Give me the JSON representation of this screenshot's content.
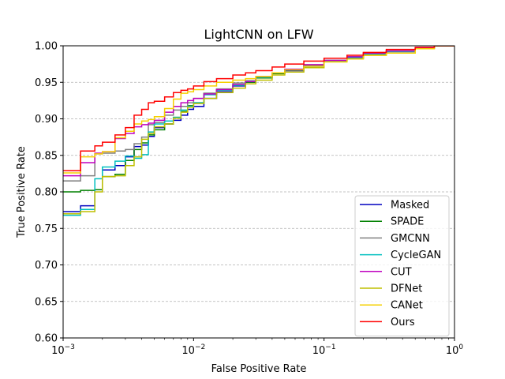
{
  "chart_data": {
    "type": "line",
    "title": "LightCNN on LFW",
    "xlabel": "False Positive Rate",
    "ylabel": "True Positive Rate",
    "xscale": "log",
    "xlim": [
      0.001,
      1
    ],
    "ylim": [
      0.6,
      1.0
    ],
    "x_ticks": [
      0.001,
      0.01,
      0.1,
      1
    ],
    "x_tick_labels": [
      {
        "base": "10",
        "exp": "−3"
      },
      {
        "base": "10",
        "exp": "−2"
      },
      {
        "base": "10",
        "exp": "−1"
      },
      {
        "base": "10",
        "exp": "0"
      }
    ],
    "y_ticks": [
      0.6,
      0.65,
      0.7,
      0.75,
      0.8,
      0.85,
      0.9,
      0.95,
      1.0
    ],
    "y_tick_labels": [
      "0.60",
      "0.65",
      "0.70",
      "0.75",
      "0.80",
      "0.85",
      "0.90",
      "0.95",
      "1.00"
    ],
    "grid": "y-dashed",
    "legend": "bottom-right",
    "series": [
      {
        "name": "Masked",
        "color": "#0000bf",
        "x": [
          0.001,
          0.00136,
          0.00175,
          0.002,
          0.0025,
          0.003,
          0.0035,
          0.004,
          0.0045,
          0.005,
          0.006,
          0.007,
          0.008,
          0.009,
          0.01,
          0.012,
          0.015,
          0.02,
          0.025,
          0.03,
          0.04,
          0.05,
          0.07,
          0.1,
          0.15,
          0.2,
          0.3,
          0.5,
          0.7
        ],
        "y": [
          0.773,
          0.781,
          0.803,
          0.83,
          0.836,
          0.848,
          0.862,
          0.864,
          0.876,
          0.888,
          0.893,
          0.898,
          0.905,
          0.913,
          0.917,
          0.928,
          0.937,
          0.945,
          0.952,
          0.956,
          0.962,
          0.966,
          0.972,
          0.979,
          0.983,
          0.988,
          0.992,
          0.997,
          1.0
        ]
      },
      {
        "name": "SPADE",
        "color": "#008000",
        "x": [
          0.001,
          0.00136,
          0.00175,
          0.002,
          0.0025,
          0.003,
          0.0035,
          0.004,
          0.0045,
          0.005,
          0.006,
          0.007,
          0.008,
          0.009,
          0.01,
          0.012,
          0.015,
          0.02,
          0.025,
          0.03,
          0.04,
          0.05,
          0.07,
          0.1,
          0.15,
          0.2,
          0.3,
          0.5,
          0.7
        ],
        "y": [
          0.8,
          0.802,
          0.803,
          0.821,
          0.824,
          0.843,
          0.858,
          0.867,
          0.878,
          0.885,
          0.893,
          0.902,
          0.91,
          0.918,
          0.922,
          0.935,
          0.94,
          0.946,
          0.95,
          0.956,
          0.962,
          0.967,
          0.973,
          0.98,
          0.985,
          0.99,
          0.993,
          0.997,
          1.0
        ]
      },
      {
        "name": "GMCNN",
        "color": "#808080",
        "x": [
          0.001,
          0.00136,
          0.00175,
          0.002,
          0.0025,
          0.003,
          0.0035,
          0.004,
          0.0045,
          0.005,
          0.006,
          0.007,
          0.008,
          0.009,
          0.01,
          0.012,
          0.015,
          0.02,
          0.025,
          0.03,
          0.04,
          0.05,
          0.07,
          0.1,
          0.15,
          0.2,
          0.3,
          0.5,
          0.7
        ],
        "y": [
          0.815,
          0.822,
          0.852,
          0.853,
          0.856,
          0.858,
          0.866,
          0.875,
          0.892,
          0.895,
          0.905,
          0.912,
          0.917,
          0.922,
          0.928,
          0.935,
          0.941,
          0.949,
          0.952,
          0.957,
          0.963,
          0.967,
          0.974,
          0.98,
          0.984,
          0.989,
          0.992,
          0.997,
          1.0
        ]
      },
      {
        "name": "CycleGAN",
        "color": "#00bfbf",
        "x": [
          0.001,
          0.00136,
          0.00175,
          0.002,
          0.0025,
          0.003,
          0.0035,
          0.004,
          0.0045,
          0.005,
          0.006,
          0.007,
          0.008,
          0.009,
          0.01,
          0.012,
          0.015,
          0.02,
          0.025,
          0.03,
          0.04,
          0.05,
          0.07,
          0.1,
          0.15,
          0.2,
          0.3,
          0.5,
          0.7
        ],
        "y": [
          0.768,
          0.776,
          0.818,
          0.834,
          0.842,
          0.849,
          0.846,
          0.851,
          0.882,
          0.893,
          0.897,
          0.902,
          0.912,
          0.917,
          0.922,
          0.933,
          0.939,
          0.946,
          0.951,
          0.957,
          0.963,
          0.967,
          0.972,
          0.979,
          0.984,
          0.989,
          0.992,
          0.997,
          1.0
        ]
      },
      {
        "name": "CUT",
        "color": "#bf00bf",
        "x": [
          0.001,
          0.00136,
          0.00175,
          0.002,
          0.0025,
          0.003,
          0.0035,
          0.004,
          0.0045,
          0.005,
          0.006,
          0.007,
          0.008,
          0.009,
          0.01,
          0.012,
          0.015,
          0.02,
          0.025,
          0.03,
          0.04,
          0.05,
          0.07,
          0.1,
          0.15,
          0.2,
          0.3,
          0.5,
          0.7
        ],
        "y": [
          0.822,
          0.84,
          0.853,
          0.855,
          0.873,
          0.88,
          0.889,
          0.892,
          0.894,
          0.898,
          0.909,
          0.917,
          0.922,
          0.925,
          0.928,
          0.934,
          0.94,
          0.947,
          0.951,
          0.958,
          0.963,
          0.968,
          0.974,
          0.98,
          0.985,
          0.99,
          0.993,
          0.997,
          1.0
        ]
      },
      {
        "name": "DFNet",
        "color": "#bfbf00",
        "x": [
          0.001,
          0.00136,
          0.00175,
          0.002,
          0.0025,
          0.003,
          0.0035,
          0.004,
          0.0045,
          0.005,
          0.006,
          0.007,
          0.008,
          0.009,
          0.01,
          0.012,
          0.015,
          0.02,
          0.025,
          0.03,
          0.04,
          0.05,
          0.07,
          0.1,
          0.15,
          0.2,
          0.3,
          0.5,
          0.7
        ],
        "y": [
          0.77,
          0.773,
          0.8,
          0.821,
          0.822,
          0.836,
          0.848,
          0.872,
          0.88,
          0.889,
          0.893,
          0.901,
          0.909,
          0.916,
          0.921,
          0.928,
          0.936,
          0.942,
          0.948,
          0.953,
          0.96,
          0.964,
          0.97,
          0.978,
          0.982,
          0.987,
          0.99,
          0.996,
          1.0
        ]
      },
      {
        "name": "CANet",
        "color": "#f5d000",
        "x": [
          0.001,
          0.00136,
          0.00175,
          0.002,
          0.0025,
          0.003,
          0.0035,
          0.004,
          0.0045,
          0.005,
          0.006,
          0.007,
          0.008,
          0.009,
          0.01,
          0.012,
          0.015,
          0.02,
          0.025,
          0.03,
          0.04,
          0.05,
          0.07,
          0.1,
          0.15,
          0.2,
          0.3,
          0.5,
          0.7
        ],
        "y": [
          0.826,
          0.848,
          0.852,
          0.855,
          0.874,
          0.883,
          0.893,
          0.897,
          0.899,
          0.903,
          0.914,
          0.927,
          0.935,
          0.937,
          0.94,
          0.945,
          0.95,
          0.953,
          0.955,
          0.958,
          0.963,
          0.967,
          0.972,
          0.978,
          0.982,
          0.987,
          0.99,
          0.996,
          1.0
        ]
      },
      {
        "name": "Ours",
        "color": "#ff0000",
        "x": [
          0.001,
          0.00136,
          0.00175,
          0.002,
          0.0025,
          0.003,
          0.0035,
          0.004,
          0.0045,
          0.005,
          0.006,
          0.007,
          0.008,
          0.009,
          0.01,
          0.012,
          0.015,
          0.02,
          0.025,
          0.03,
          0.04,
          0.05,
          0.07,
          0.1,
          0.15,
          0.2,
          0.3,
          0.5,
          0.7
        ],
        "y": [
          0.829,
          0.856,
          0.863,
          0.868,
          0.878,
          0.888,
          0.905,
          0.913,
          0.922,
          0.924,
          0.93,
          0.936,
          0.939,
          0.941,
          0.945,
          0.951,
          0.955,
          0.96,
          0.963,
          0.966,
          0.971,
          0.975,
          0.979,
          0.983,
          0.987,
          0.991,
          0.995,
          0.998,
          1.0
        ]
      }
    ]
  }
}
